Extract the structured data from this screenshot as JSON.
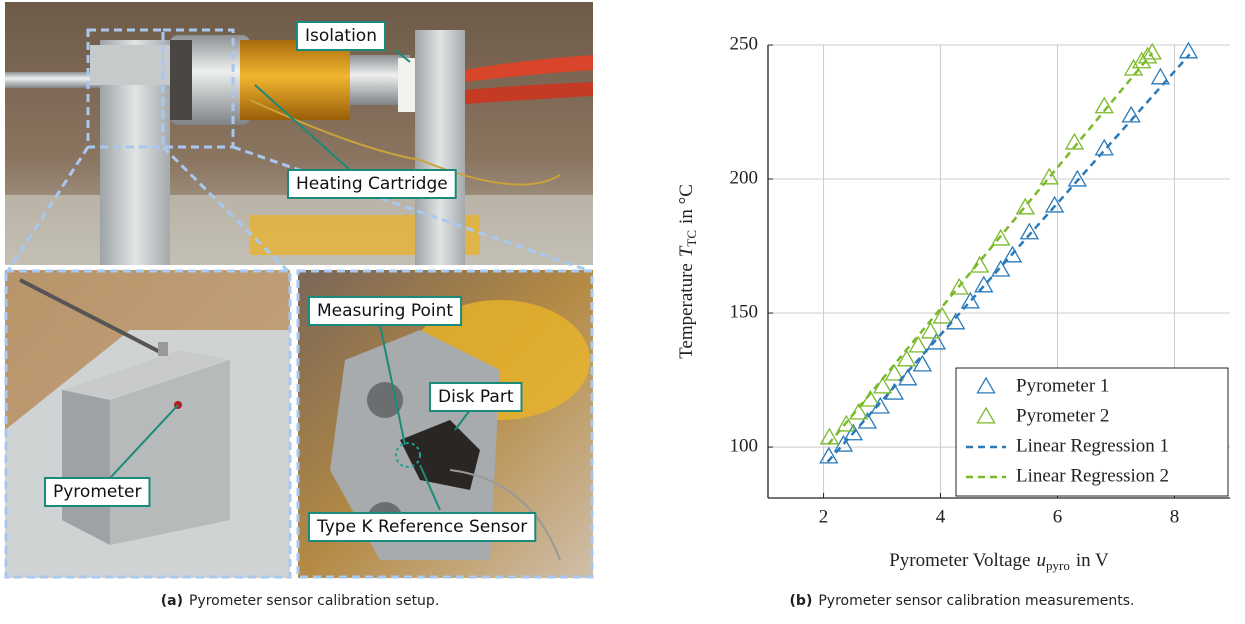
{
  "photo_labels": {
    "isolation": "Isolation",
    "heating": "Heating Cartridge",
    "pyrometer": "Pyrometer",
    "measuring": "Measuring Point",
    "disk": "Disk Part",
    "reference": "Type K Reference Sensor"
  },
  "captions": {
    "a_tag": "(a)",
    "a_text": "Pyrometer sensor calibration setup.",
    "b_tag": "(b)",
    "b_text": "Pyrometer sensor calibration measurements."
  },
  "chart_data": {
    "type": "scatter",
    "xlabel": {
      "text": "Pyrometer Voltage",
      "var": "u",
      "sub": "pyro",
      "unit": "in V"
    },
    "ylabel": {
      "text": "Temperature",
      "var": "T",
      "sub": "TC",
      "unit": "in °C"
    },
    "xlim": [
      1.05,
      8.95
    ],
    "ylim": [
      81,
      250
    ],
    "xticks": [
      2,
      4,
      6,
      8
    ],
    "yticks": [
      100,
      150,
      200,
      250
    ],
    "grid": true,
    "legend": "lower right",
    "series": [
      {
        "name": "Pyrometer 1",
        "color": "#2a7ab9",
        "style": "triangle",
        "x": [
          2.09,
          2.34,
          2.51,
          2.75,
          2.97,
          3.21,
          3.44,
          3.69,
          3.93,
          4.26,
          4.51,
          4.74,
          5.03,
          5.23,
          5.52,
          5.95,
          6.34,
          6.8,
          7.26,
          7.76,
          8.24
        ],
        "values": [
          96.3,
          100.7,
          104.9,
          109.3,
          114.9,
          120.1,
          125.4,
          130.6,
          138.8,
          146.3,
          154.1,
          160.1,
          166.0,
          171.3,
          179.9,
          189.9,
          199.6,
          211.2,
          223.5,
          237.7,
          247.4
        ]
      },
      {
        "name": "Pyrometer 2",
        "color": "#7ab929",
        "style": "triangle",
        "x": [
          2.1,
          2.39,
          2.6,
          2.8,
          3.01,
          3.21,
          3.42,
          3.62,
          3.83,
          4.03,
          4.32,
          4.67,
          5.03,
          5.45,
          5.86,
          6.29,
          6.8,
          7.3,
          7.44,
          7.54,
          7.62
        ],
        "values": [
          103.4,
          108.2,
          112.7,
          117.5,
          122.4,
          127.2,
          132.5,
          137.7,
          142.9,
          148.5,
          159.3,
          167.5,
          177.6,
          189.2,
          200.4,
          213.4,
          226.9,
          241.0,
          243.7,
          245.5,
          247.0
        ]
      },
      {
        "name": "Linear Regression 1",
        "color": "#2a7ab9",
        "style": "dashed",
        "x": [
          2.07,
          8.26
        ],
        "values": [
          94.5,
          246.5
        ]
      },
      {
        "name": "Linear Regression 2",
        "color": "#7ab929",
        "style": "dashed",
        "x": [
          2.08,
          7.62
        ],
        "values": [
          101.0,
          247.0
        ]
      }
    ]
  }
}
